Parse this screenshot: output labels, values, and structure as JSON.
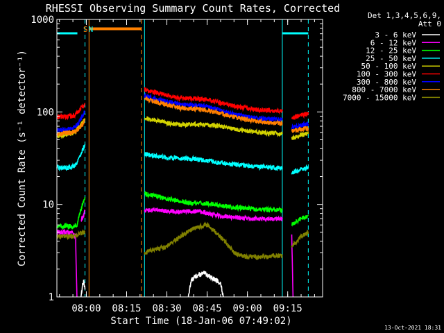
{
  "chart_data": {
    "type": "line",
    "title": "RHESSI Observing Summary Count Rates, Corrected",
    "xlabel": "Start Time (18-Jan-06 07:49:02)",
    "ylabel": "Corrected Count Rate (s⁻¹ detector⁻¹)",
    "yscale": "log",
    "ylim": [
      1,
      1000
    ],
    "xlim": [
      "07:49:02",
      "09:28:00"
    ],
    "x_ticks": [
      "08:00",
      "08:15",
      "08:30",
      "08:45",
      "09:00",
      "09:15"
    ],
    "y_ticks": [
      "1",
      "10",
      "100",
      "1000"
    ],
    "legend_title": [
      "Det 1,3,4,5,6,9,",
      "Att 0"
    ],
    "legend_position": "right",
    "timestamp": "13-Oct-2021 18:31",
    "markers": [
      {
        "label": "S",
        "time": "07:59:40",
        "color": "#ff8000"
      },
      {
        "label": "N",
        "time": "08:01:40",
        "color": "#00ffff"
      }
    ],
    "saa_bar": {
      "start": "08:01:00",
      "end": "08:20:30",
      "color": "#ff8000"
    },
    "night_bars": [
      {
        "start": "07:49:02",
        "end": "07:56:40"
      },
      {
        "start": "09:13:00",
        "end": "09:22:40"
      }
    ],
    "vlines": [
      {
        "time": "07:49:02",
        "color": "#00ffff",
        "dash": false
      },
      {
        "time": "07:59:30",
        "color": "#00ffff",
        "dash": true
      },
      {
        "time": "08:01:00",
        "color": "#ff8000",
        "dash": false
      },
      {
        "time": "08:20:30",
        "color": "#ff8000",
        "dash": true
      },
      {
        "time": "08:21:40",
        "color": "#00ffff",
        "dash": false
      },
      {
        "time": "09:13:00",
        "color": "#00ffff",
        "dash": false
      },
      {
        "time": "09:22:40",
        "color": "#00ffff",
        "dash": true
      }
    ],
    "series": [
      {
        "name": "3 - 6 keV",
        "color": "#ffffff",
        "segments": [
          [
            [
              "07:58:00",
              1.0
            ],
            [
              "07:58:30",
              1.3
            ],
            [
              "07:59:00",
              1.5
            ],
            [
              "07:59:30",
              1.2
            ]
          ],
          [
            [
              "08:38:00",
              1.0
            ],
            [
              "08:39:00",
              1.5
            ],
            [
              "08:41:00",
              1.7
            ],
            [
              "08:44:00",
              1.8
            ],
            [
              "08:47:00",
              1.6
            ],
            [
              "08:50:00",
              1.4
            ],
            [
              "08:51:00",
              1.0
            ]
          ]
        ]
      },
      {
        "name": "6 - 12 keV",
        "color": "#ff00ff",
        "segments": [
          [
            [
              "07:49:02",
              5.0
            ],
            [
              "07:55:00",
              5.0
            ],
            [
              "07:56:00",
              4.5
            ],
            [
              "07:56:30",
              1.0
            ]
          ],
          [
            [
              "07:58:00",
              6.8
            ],
            [
              "07:59:00",
              7.5
            ],
            [
              "07:59:30",
              8.5
            ]
          ],
          [
            [
              "08:21:40",
              8.5
            ],
            [
              "08:25:00",
              8.8
            ],
            [
              "08:30:00",
              8.5
            ],
            [
              "08:35:00",
              8.3
            ],
            [
              "08:40:00",
              8.5
            ],
            [
              "08:45:00",
              8.0
            ],
            [
              "08:50:00",
              7.5
            ],
            [
              "08:55:00",
              7.3
            ],
            [
              "09:00:00",
              7.0
            ],
            [
              "09:05:00",
              7.0
            ],
            [
              "09:13:00",
              7.0
            ]
          ],
          [
            [
              "09:16:30",
              4.5
            ],
            [
              "09:17:00",
              1.0
            ]
          ]
        ]
      },
      {
        "name": "12 - 25 keV",
        "color": "#00ff00",
        "segments": [
          [
            [
              "07:49:02",
              5.8
            ],
            [
              "07:55:00",
              5.8
            ],
            [
              "07:56:30",
              6.0
            ],
            [
              "07:58:00",
              9.0
            ],
            [
              "07:59:00",
              10.5
            ],
            [
              "07:59:30",
              12.0
            ]
          ],
          [
            [
              "08:21:40",
              13.0
            ],
            [
              "08:25:00",
              12.5
            ],
            [
              "08:30:00",
              11.5
            ],
            [
              "08:35:00",
              10.8
            ],
            [
              "08:40:00",
              10.3
            ],
            [
              "08:45:00",
              10.2
            ],
            [
              "08:50:00",
              9.8
            ],
            [
              "08:55:00",
              9.3
            ],
            [
              "09:00:00",
              9.0
            ],
            [
              "09:05:00",
              8.8
            ],
            [
              "09:10:00",
              8.7
            ],
            [
              "09:13:00",
              8.7
            ]
          ],
          [
            [
              "09:16:30",
              6.0
            ],
            [
              "09:20:00",
              7.0
            ],
            [
              "09:22:40",
              7.5
            ]
          ]
        ]
      },
      {
        "name": "25 - 50 keV",
        "color": "#00ffff",
        "segments": [
          [
            [
              "07:49:02",
              25.0
            ],
            [
              "07:54:00",
              25.0
            ],
            [
              "07:56:00",
              27.0
            ],
            [
              "07:58:00",
              35.0
            ],
            [
              "07:59:30",
              45.0
            ]
          ],
          [
            [
              "08:21:40",
              35.0
            ],
            [
              "08:30:00",
              32.0
            ],
            [
              "08:40:00",
              31.0
            ],
            [
              "08:50:00",
              28.0
            ],
            [
              "09:00:00",
              26.0
            ],
            [
              "09:10:00",
              25.0
            ],
            [
              "09:13:00",
              24.5
            ]
          ],
          [
            [
              "09:16:30",
              22.0
            ],
            [
              "09:20:00",
              24.0
            ],
            [
              "09:22:40",
              25.0
            ]
          ]
        ]
      },
      {
        "name": "50 - 100 keV",
        "color": "#d2d200",
        "segments": [
          [
            [
              "07:49:02",
              55.0
            ],
            [
              "07:55:00",
              58.0
            ],
            [
              "07:57:00",
              68.0
            ],
            [
              "07:59:30",
              85.0
            ]
          ],
          [
            [
              "08:21:40",
              85.0
            ],
            [
              "08:25:00",
              82.0
            ],
            [
              "08:30:00",
              76.0
            ],
            [
              "08:35:00",
              72.0
            ],
            [
              "08:40:00",
              74.0
            ],
            [
              "08:45:00",
              73.0
            ],
            [
              "08:50:00",
              70.0
            ],
            [
              "08:55:00",
              65.0
            ],
            [
              "09:00:00",
              62.0
            ],
            [
              "09:05:00",
              60.0
            ],
            [
              "09:10:00",
              59.0
            ],
            [
              "09:13:00",
              58.0
            ]
          ],
          [
            [
              "09:16:30",
              52.0
            ],
            [
              "09:20:00",
              56.0
            ],
            [
              "09:22:40",
              58.0
            ]
          ]
        ]
      },
      {
        "name": "100 - 300 keV",
        "color": "#ff0000",
        "segments": [
          [
            [
              "07:49:02",
              88.0
            ],
            [
              "07:55:00",
              90.0
            ],
            [
              "07:57:00",
              100.0
            ],
            [
              "07:59:30",
              125.0
            ]
          ],
          [
            [
              "08:21:40",
              175.0
            ],
            [
              "08:25:00",
              165.0
            ],
            [
              "08:30:00",
              150.0
            ],
            [
              "08:35:00",
              140.0
            ],
            [
              "08:40:00",
              140.0
            ],
            [
              "08:45:00",
              135.0
            ],
            [
              "08:50:00",
              125.0
            ],
            [
              "08:55:00",
              115.0
            ],
            [
              "09:00:00",
              110.0
            ],
            [
              "09:05:00",
              105.0
            ],
            [
              "09:10:00",
              103.0
            ],
            [
              "09:13:00",
              102.0
            ]
          ],
          [
            [
              "09:16:30",
              85.0
            ],
            [
              "09:20:00",
              92.0
            ],
            [
              "09:22:40",
              95.0
            ]
          ]
        ]
      },
      {
        "name": "300 - 800 keV",
        "color": "#0000ff",
        "segments": [
          [
            [
              "07:49:02",
              63.0
            ],
            [
              "07:55:00",
              66.0
            ],
            [
              "07:57:00",
              75.0
            ],
            [
              "07:59:30",
              100.0
            ]
          ],
          [
            [
              "08:21:40",
              150.0
            ],
            [
              "08:25:00",
              140.0
            ],
            [
              "08:30:00",
              130.0
            ],
            [
              "08:35:00",
              120.0
            ],
            [
              "08:40:00",
              118.0
            ],
            [
              "08:45:00",
              115.0
            ],
            [
              "08:50:00",
              105.0
            ],
            [
              "08:55:00",
              95.0
            ],
            [
              "09:00:00",
              88.0
            ],
            [
              "09:05:00",
              85.0
            ],
            [
              "09:10:00",
              83.0
            ],
            [
              "09:13:00",
              82.0
            ]
          ],
          [
            [
              "09:16:30",
              68.0
            ],
            [
              "09:20:00",
              72.0
            ],
            [
              "09:22:40",
              74.0
            ]
          ]
        ]
      },
      {
        "name": "800 - 7000 keV",
        "color": "#ff8000",
        "segments": [
          [
            [
              "07:49:02",
              58.0
            ],
            [
              "07:55:00",
              60.0
            ],
            [
              "07:57:00",
              65.0
            ],
            [
              "07:59:30",
              80.0
            ]
          ],
          [
            [
              "08:21:40",
              140.0
            ],
            [
              "08:25:00",
              130.0
            ],
            [
              "08:30:00",
              120.0
            ],
            [
              "08:35:00",
              110.0
            ],
            [
              "08:40:00",
              108.0
            ],
            [
              "08:45:00",
              105.0
            ],
            [
              "08:50:00",
              97.0
            ],
            [
              "08:55:00",
              88.0
            ],
            [
              "09:00:00",
              82.0
            ],
            [
              "09:05:00",
              78.0
            ],
            [
              "09:10:00",
              76.0
            ],
            [
              "09:13:00",
              75.0
            ]
          ],
          [
            [
              "09:16:30",
              62.0
            ],
            [
              "09:20:00",
              65.0
            ],
            [
              "09:22:40",
              67.0
            ]
          ]
        ]
      },
      {
        "name": "7000 - 15000 keV",
        "color": "#808000",
        "segments": [
          [
            [
              "07:49:02",
              4.5
            ],
            [
              "07:55:00",
              4.5
            ],
            [
              "07:57:00",
              4.8
            ],
            [
              "07:59:30",
              5.0
            ]
          ],
          [
            [
              "08:21:40",
              3.0
            ],
            [
              "08:25:00",
              3.2
            ],
            [
              "08:30:00",
              3.5
            ],
            [
              "08:35:00",
              4.5
            ],
            [
              "08:40:00",
              5.5
            ],
            [
              "08:45:00",
              6.0
            ],
            [
              "08:50:00",
              4.5
            ],
            [
              "08:55:00",
              3.0
            ],
            [
              "09:00:00",
              2.7
            ],
            [
              "09:05:00",
              2.7
            ],
            [
              "09:10:00",
              2.8
            ],
            [
              "09:13:00",
              2.8
            ]
          ],
          [
            [
              "09:16:30",
              3.5
            ],
            [
              "09:20:00",
              4.5
            ],
            [
              "09:22:40",
              5.0
            ]
          ]
        ]
      }
    ]
  }
}
